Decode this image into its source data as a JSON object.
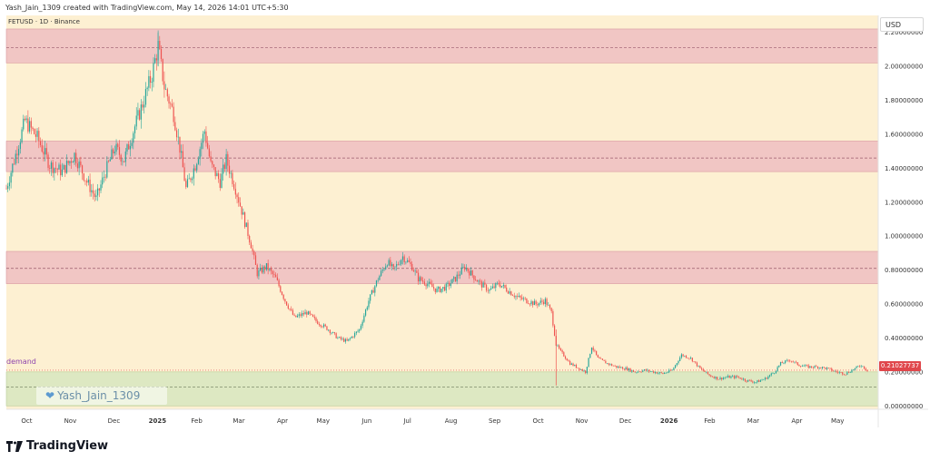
{
  "header": {
    "credit": "Yash_Jain_1309 created with TradingView.com, May 14, 2026 14:01 UTC+5:30"
  },
  "symbol_line": "FETUSD · 1D · Binance",
  "currency_button": "USD",
  "last_price_label": "0.21027737",
  "demand_label": "demand",
  "watermark_text": "Yash_Jain_1309",
  "brand": {
    "name": "TradingView"
  },
  "colors": {
    "background": "#fdf0d2",
    "zone_red": "#f1c6c4",
    "zone_green": "#dde8c2",
    "up": "#26a69a",
    "down": "#ef5350"
  },
  "chart_data": {
    "type": "candlestick",
    "y_axis_ticks": [
      "2.20000000",
      "2.00000000",
      "1.80000000",
      "1.60000000",
      "1.40000000",
      "1.20000000",
      "1.00000000",
      "0.80000000",
      "0.60000000",
      "0.40000000",
      "0.20000000",
      "0.00000000"
    ],
    "ylim": [
      -0.02,
      2.3
    ],
    "x_axis_ticks": [
      "Oct",
      "Nov",
      "Dec",
      "2025",
      "Feb",
      "Mar",
      "Apr",
      "May",
      "Jun",
      "Jul",
      "Aug",
      "Sep",
      "Oct",
      "Nov",
      "Dec",
      "2026",
      "Feb",
      "Mar",
      "Apr",
      "May"
    ],
    "zones": [
      {
        "kind": "supply",
        "low": 2.02,
        "high": 2.22,
        "mid": 2.11
      },
      {
        "kind": "supply",
        "low": 1.38,
        "high": 1.56,
        "mid": 1.46
      },
      {
        "kind": "supply",
        "low": 0.72,
        "high": 0.91,
        "mid": 0.81
      },
      {
        "kind": "demand",
        "low": 0.0,
        "high": 0.2,
        "mid": 0.11
      }
    ],
    "last_price": 0.21027737,
    "close_path": [
      [
        0,
        1.28
      ],
      [
        6,
        1.48
      ],
      [
        12,
        1.68
      ],
      [
        20,
        1.58
      ],
      [
        28,
        1.42
      ],
      [
        36,
        1.38
      ],
      [
        44,
        1.48
      ],
      [
        52,
        1.32
      ],
      [
        58,
        1.22
      ],
      [
        64,
        1.38
      ],
      [
        70,
        1.52
      ],
      [
        76,
        1.45
      ],
      [
        82,
        1.62
      ],
      [
        88,
        1.78
      ],
      [
        94,
        1.95
      ],
      [
        98,
        2.12
      ],
      [
        102,
        1.88
      ],
      [
        108,
        1.72
      ],
      [
        112,
        1.52
      ],
      [
        116,
        1.28
      ],
      [
        122,
        1.42
      ],
      [
        128,
        1.62
      ],
      [
        132,
        1.42
      ],
      [
        138,
        1.32
      ],
      [
        142,
        1.45
      ],
      [
        148,
        1.28
      ],
      [
        152,
        1.15
      ],
      [
        158,
        0.95
      ],
      [
        162,
        0.78
      ],
      [
        168,
        0.82
      ],
      [
        174,
        0.75
      ],
      [
        180,
        0.62
      ],
      [
        186,
        0.52
      ],
      [
        194,
        0.55
      ],
      [
        200,
        0.5
      ],
      [
        208,
        0.45
      ],
      [
        214,
        0.4
      ],
      [
        220,
        0.38
      ],
      [
        228,
        0.45
      ],
      [
        234,
        0.62
      ],
      [
        240,
        0.75
      ],
      [
        246,
        0.85
      ],
      [
        250,
        0.8
      ],
      [
        256,
        0.88
      ],
      [
        262,
        0.82
      ],
      [
        266,
        0.75
      ],
      [
        272,
        0.72
      ],
      [
        278,
        0.68
      ],
      [
        284,
        0.7
      ],
      [
        290,
        0.75
      ],
      [
        296,
        0.82
      ],
      [
        300,
        0.78
      ],
      [
        306,
        0.72
      ],
      [
        312,
        0.68
      ],
      [
        318,
        0.72
      ],
      [
        324,
        0.68
      ],
      [
        330,
        0.64
      ],
      [
        336,
        0.62
      ],
      [
        342,
        0.6
      ],
      [
        348,
        0.62
      ],
      [
        352,
        0.55
      ],
      [
        355,
        0.36
      ],
      [
        358,
        0.32
      ],
      [
        364,
        0.25
      ],
      [
        370,
        0.22
      ],
      [
        374,
        0.2
      ],
      [
        378,
        0.35
      ],
      [
        382,
        0.28
      ],
      [
        388,
        0.25
      ],
      [
        394,
        0.23
      ],
      [
        400,
        0.22
      ],
      [
        406,
        0.2
      ],
      [
        412,
        0.21
      ],
      [
        418,
        0.2
      ],
      [
        424,
        0.19
      ],
      [
        430,
        0.21
      ],
      [
        436,
        0.3
      ],
      [
        442,
        0.28
      ],
      [
        448,
        0.22
      ],
      [
        454,
        0.18
      ],
      [
        460,
        0.16
      ],
      [
        466,
        0.17
      ],
      [
        472,
        0.17
      ],
      [
        478,
        0.15
      ],
      [
        484,
        0.14
      ],
      [
        490,
        0.16
      ],
      [
        496,
        0.2
      ],
      [
        500,
        0.25
      ],
      [
        506,
        0.27
      ],
      [
        512,
        0.24
      ],
      [
        518,
        0.23
      ],
      [
        524,
        0.23
      ],
      [
        530,
        0.22
      ],
      [
        536,
        0.2
      ],
      [
        542,
        0.19
      ],
      [
        548,
        0.22
      ],
      [
        552,
        0.24
      ],
      [
        556,
        0.21
      ]
    ],
    "x_range": [
      0,
      556
    ],
    "x_tick_positions": [
      14,
      44,
      74,
      104,
      131,
      160,
      190,
      218,
      248,
      276,
      306,
      336,
      366,
      396,
      426,
      456,
      484,
      514,
      544,
      572
    ]
  }
}
